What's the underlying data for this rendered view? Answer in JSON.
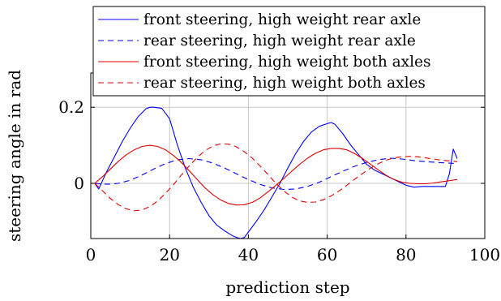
{
  "chart_data": {
    "type": "line",
    "xlabel": "prediction step",
    "ylabel": "steering angle in rad",
    "xlim": [
      0,
      100
    ],
    "ylim": [
      -0.145,
      0.29
    ],
    "xticks": [
      0,
      20,
      40,
      60,
      80,
      100
    ],
    "xtick_labels": [
      "0",
      "20",
      "40",
      "60",
      "80",
      "100"
    ],
    "yticks": [
      0,
      0.2
    ],
    "ytick_labels": [
      "0",
      "0.2"
    ],
    "grid": true,
    "legend_position": "top-right",
    "series": [
      {
        "name": "front steering, high weight rear axle",
        "color": "#0000ff",
        "dash": "solid",
        "x": [
          1,
          2,
          4,
          6,
          8,
          10,
          12,
          14,
          15,
          16,
          18,
          20,
          22,
          24,
          26,
          28,
          30,
          32,
          34,
          36,
          37,
          38,
          39,
          40,
          42,
          44,
          46,
          48,
          50,
          52,
          54,
          56,
          58,
          60,
          61,
          62,
          64,
          66,
          68,
          70,
          72,
          74,
          76,
          78,
          80,
          82,
          84,
          86,
          88,
          89,
          90,
          91,
          92,
          93
        ],
        "y": [
          0.0,
          -0.015,
          0.03,
          0.07,
          0.11,
          0.145,
          0.175,
          0.196,
          0.2,
          0.2,
          0.197,
          0.17,
          0.1,
          0.04,
          -0.01,
          -0.05,
          -0.085,
          -0.11,
          -0.125,
          -0.138,
          -0.142,
          -0.145,
          -0.142,
          -0.128,
          -0.1,
          -0.07,
          -0.035,
          0.0,
          0.04,
          0.078,
          0.11,
          0.135,
          0.15,
          0.157,
          0.16,
          0.155,
          0.13,
          0.1,
          0.075,
          0.05,
          0.035,
          0.025,
          0.015,
          0.005,
          -0.005,
          -0.01,
          -0.008,
          -0.008,
          -0.008,
          -0.008,
          -0.008,
          0.025,
          0.09,
          0.065
        ]
      },
      {
        "name": "rear steering, high weight rear axle",
        "color": "#0000ff",
        "dash": "dashed",
        "x": [
          1,
          3,
          5,
          7,
          10,
          13,
          16,
          19,
          22,
          25,
          28,
          31,
          34,
          37,
          40,
          43,
          46,
          49,
          52,
          55,
          58,
          61,
          64,
          67,
          70,
          73,
          76,
          79,
          82,
          85,
          88,
          91,
          93
        ],
        "y": [
          0.0,
          -0.002,
          -0.002,
          0.0,
          0.008,
          0.022,
          0.038,
          0.052,
          0.062,
          0.065,
          0.062,
          0.053,
          0.04,
          0.025,
          0.01,
          -0.003,
          -0.012,
          -0.016,
          -0.015,
          -0.008,
          0.003,
          0.018,
          0.032,
          0.045,
          0.055,
          0.062,
          0.066,
          0.064,
          0.06,
          0.057,
          0.055,
          0.053,
          0.052
        ]
      },
      {
        "name": "front steering, high weight both axles",
        "color": "#e00000",
        "dash": "solid",
        "x": [
          1,
          3,
          5,
          7,
          9,
          11,
          13,
          15,
          17,
          19,
          21,
          23,
          25,
          27,
          29,
          31,
          33,
          35,
          37,
          39,
          41,
          43,
          45,
          47,
          49,
          51,
          53,
          55,
          57,
          59,
          61,
          63,
          65,
          67,
          69,
          71,
          73,
          75,
          77,
          79,
          81,
          83,
          85,
          87,
          89,
          91,
          93
        ],
        "y": [
          0.0,
          0.018,
          0.038,
          0.058,
          0.075,
          0.088,
          0.097,
          0.1,
          0.097,
          0.088,
          0.073,
          0.055,
          0.033,
          0.01,
          -0.012,
          -0.03,
          -0.044,
          -0.053,
          -0.057,
          -0.056,
          -0.05,
          -0.038,
          -0.022,
          -0.005,
          0.013,
          0.032,
          0.05,
          0.066,
          0.079,
          0.088,
          0.092,
          0.092,
          0.088,
          0.078,
          0.065,
          0.05,
          0.035,
          0.021,
          0.01,
          0.003,
          0.0,
          -0.001,
          -0.001,
          0.001,
          0.004,
          0.007,
          0.01
        ]
      },
      {
        "name": "rear steering, high weight both axles",
        "color": "#e00000",
        "dash": "dashed",
        "x": [
          1,
          3,
          5,
          7,
          9,
          11,
          13,
          15,
          17,
          19,
          21,
          23,
          25,
          27,
          29,
          31,
          33,
          35,
          37,
          39,
          41,
          43,
          45,
          47,
          49,
          51,
          53,
          55,
          57,
          59,
          61,
          63,
          65,
          67,
          69,
          71,
          73,
          75,
          77,
          79,
          81,
          83,
          85,
          87,
          89,
          91,
          93
        ],
        "y": [
          0.0,
          -0.02,
          -0.04,
          -0.056,
          -0.067,
          -0.072,
          -0.07,
          -0.061,
          -0.046,
          -0.026,
          -0.003,
          0.022,
          0.046,
          0.068,
          0.086,
          0.098,
          0.104,
          0.103,
          0.096,
          0.083,
          0.066,
          0.045,
          0.023,
          0.0,
          -0.02,
          -0.036,
          -0.046,
          -0.05,
          -0.049,
          -0.043,
          -0.033,
          -0.02,
          -0.005,
          0.011,
          0.026,
          0.04,
          0.052,
          0.061,
          0.067,
          0.07,
          0.071,
          0.07,
          0.067,
          0.064,
          0.061,
          0.059,
          0.057
        ]
      }
    ]
  }
}
